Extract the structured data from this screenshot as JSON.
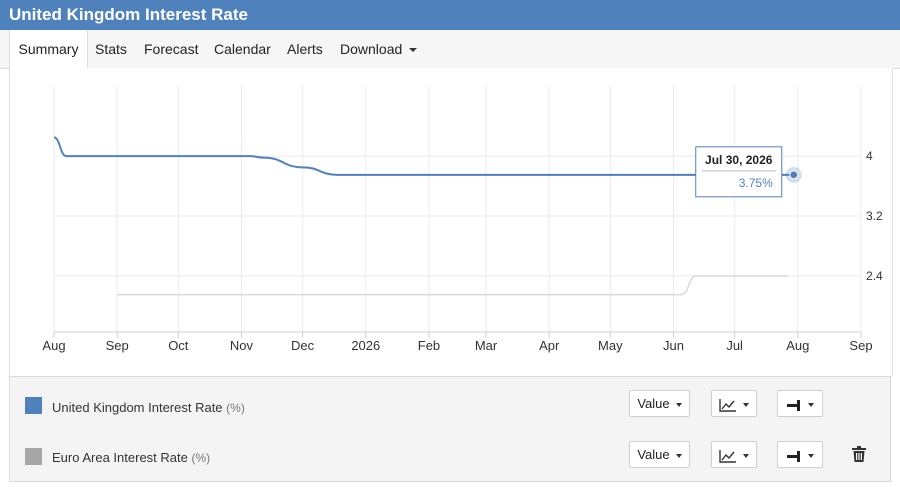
{
  "header": {
    "title": "United Kingdom Interest Rate"
  },
  "tabs": [
    {
      "label": "Summary",
      "active": true
    },
    {
      "label": "Stats"
    },
    {
      "label": "Forecast"
    },
    {
      "label": "Calendar"
    },
    {
      "label": "Alerts"
    },
    {
      "label": "Download",
      "dropdown": true
    }
  ],
  "chart_data": {
    "type": "line",
    "x_tick_labels": [
      "Aug",
      "Sep",
      "Oct",
      "Nov",
      "Dec",
      "2026",
      "Feb",
      "Mar",
      "Apr",
      "May",
      "Jun",
      "Jul",
      "Aug",
      "Sep"
    ],
    "y_tick_labels": [
      "4",
      "3.2",
      "2.4"
    ],
    "grid": true,
    "series": [
      {
        "name": "United Kingdom Interest Rate",
        "color": "#4f81bd",
        "points": [
          {
            "x": "2025-08-01",
            "y": 4.25
          },
          {
            "x": "2025-08-07",
            "y": 4.0
          },
          {
            "x": "2025-11-05",
            "y": 4.0
          },
          {
            "x": "2025-11-12",
            "y": 3.98
          },
          {
            "x": "2025-12-01",
            "y": 3.85
          },
          {
            "x": "2025-12-18",
            "y": 3.75
          },
          {
            "x": "2026-07-30",
            "y": 3.75
          }
        ]
      },
      {
        "name": "Euro Area Interest Rate",
        "color": "#a6a6a6",
        "points": [
          {
            "x": "2025-09-01",
            "y": 2.15
          },
          {
            "x": "2026-06-05",
            "y": 2.15
          },
          {
            "x": "2026-06-12",
            "y": 2.4
          },
          {
            "x": "2026-07-27",
            "y": 2.4
          }
        ]
      }
    ],
    "tooltip": {
      "date": "Jul 30, 2026",
      "value": "3.75%"
    }
  },
  "legend": [
    {
      "name": "United Kingdom Interest Rate",
      "unit": "(%)",
      "color": "#4f81bd",
      "value_label": "Value",
      "deletable": false
    },
    {
      "name": "Euro Area Interest Rate",
      "unit": "(%)",
      "color": "#a6a6a6",
      "value_label": "Value",
      "deletable": true
    }
  ]
}
